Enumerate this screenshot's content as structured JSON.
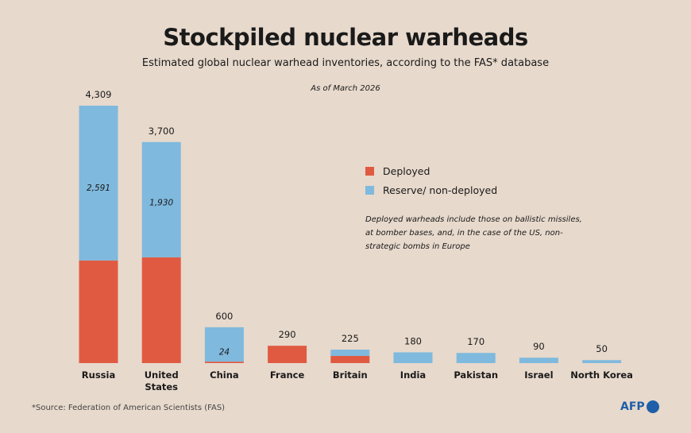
{
  "title": "Stockpiled nuclear warheads",
  "subtitle": "Estimated global nuclear warhead inventories, according to the FAS* database",
  "as_of": "As of March 2026",
  "note": "Deployed warheads include those on ballistic missiles, at bomber bases, and, in the case of the US, non-strategic bombs in Europe",
  "source": "*Source: Federation of American Scientists (FAS)",
  "logo": "AFP",
  "colors": {
    "deployed": "#e05a42",
    "reserve": "#7fb9de"
  },
  "chart_data": {
    "type": "bar",
    "stacked": true,
    "categories": [
      "Russia",
      "United States",
      "China",
      "France",
      "Britain",
      "India",
      "Pakistan",
      "Israel",
      "North Korea"
    ],
    "totals": [
      4309,
      3700,
      600,
      290,
      225,
      180,
      170,
      90,
      50
    ],
    "total_labels": [
      "4,309",
      "3,700",
      "600",
      "290",
      "225",
      "180",
      "170",
      "90",
      "50"
    ],
    "series": [
      {
        "name": "Deployed",
        "values": [
          1718,
          1770,
          24,
          290,
          120,
          0,
          0,
          0,
          0
        ]
      },
      {
        "name": "Reserve/ non-deployed",
        "values": [
          2591,
          1930,
          576,
          0,
          105,
          180,
          170,
          90,
          50
        ]
      }
    ],
    "inner_labels": [
      "2,591",
      "1,930",
      "24",
      "",
      "",
      "",
      "",
      "",
      ""
    ],
    "legend_position": "right",
    "grid": false,
    "ylim": [
      0,
      4309
    ]
  }
}
